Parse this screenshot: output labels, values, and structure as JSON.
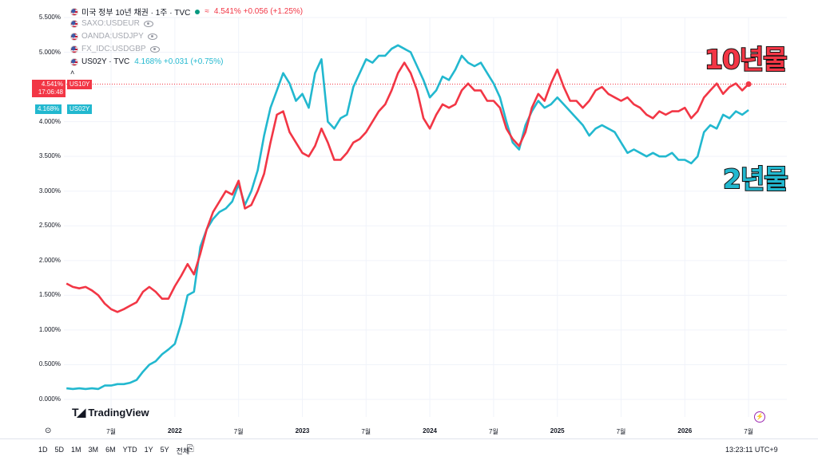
{
  "legend": {
    "main_title": "미국 정부 10년 채권 · 1주 · TVC",
    "main_values": "4.541% +0.056 (+1.25%)",
    "overlays": [
      "SAXO:USDEUR",
      "OANDA:USDJPY",
      "FX_IDC:USDGBP"
    ],
    "second_title": "US02Y · TVC",
    "second_values": "4.168% +0.031 (+0.75%)",
    "collapse_icon": "chevron-up-icon"
  },
  "price_tags": {
    "us10y_value": "4.541%",
    "us10y_symbol": "US10Y",
    "us10y_time": "17:06:48",
    "us02y_value": "4.168%",
    "us02y_symbol": "US02Y"
  },
  "annotations": {
    "label_10y": "10년물",
    "label_2y": "2년물"
  },
  "brand": {
    "name": "TradingView"
  },
  "bottom_bar": {
    "ranges": [
      "1D",
      "5D",
      "1M",
      "3M",
      "6M",
      "YTD",
      "1Y",
      "5Y",
      "전체"
    ],
    "clock": "13:23:11 UTC+9"
  },
  "colors": {
    "us10y": "#f23645",
    "us02y": "#22b8cf",
    "grid": "#f0f3fa",
    "current_line": "#f23645"
  },
  "chart_data": {
    "type": "line",
    "ylim": [
      0,
      5.5
    ],
    "yticks": [
      "0.000%",
      "0.500%",
      "1.000%",
      "1.500%",
      "2.000%",
      "2.500%",
      "3.000%",
      "3.500%",
      "4.000%",
      "4.500%",
      "5.000%",
      "5.500%"
    ],
    "xticks": [
      {
        "label": "7월",
        "x": 2021.5
      },
      {
        "label": "2022",
        "x": 2022.0
      },
      {
        "label": "7월",
        "x": 2022.5
      },
      {
        "label": "2023",
        "x": 2023.0
      },
      {
        "label": "7월",
        "x": 2023.5
      },
      {
        "label": "2024",
        "x": 2024.0
      },
      {
        "label": "7월",
        "x": 2024.5
      },
      {
        "label": "2025",
        "x": 2025.0
      },
      {
        "label": "7월",
        "x": 2025.5
      },
      {
        "label": "2026",
        "x": 2026.0
      },
      {
        "label": "7월",
        "x": 2026.5
      }
    ],
    "xlim": [
      2021.13,
      2026.8
    ],
    "series": [
      {
        "name": "US10Y",
        "color": "#f23645",
        "points": [
          [
            2021.15,
            1.67
          ],
          [
            2021.2,
            1.62
          ],
          [
            2021.25,
            1.6
          ],
          [
            2021.3,
            1.62
          ],
          [
            2021.35,
            1.57
          ],
          [
            2021.4,
            1.5
          ],
          [
            2021.45,
            1.38
          ],
          [
            2021.5,
            1.3
          ],
          [
            2021.55,
            1.26
          ],
          [
            2021.6,
            1.3
          ],
          [
            2021.65,
            1.35
          ],
          [
            2021.7,
            1.4
          ],
          [
            2021.75,
            1.55
          ],
          [
            2021.8,
            1.62
          ],
          [
            2021.85,
            1.55
          ],
          [
            2021.9,
            1.45
          ],
          [
            2021.95,
            1.45
          ],
          [
            2022.0,
            1.63
          ],
          [
            2022.05,
            1.78
          ],
          [
            2022.1,
            1.95
          ],
          [
            2022.15,
            1.8
          ],
          [
            2022.2,
            2.1
          ],
          [
            2022.25,
            2.45
          ],
          [
            2022.3,
            2.7
          ],
          [
            2022.35,
            2.85
          ],
          [
            2022.4,
            3.0
          ],
          [
            2022.45,
            2.95
          ],
          [
            2022.5,
            3.15
          ],
          [
            2022.55,
            2.75
          ],
          [
            2022.6,
            2.8
          ],
          [
            2022.65,
            3.0
          ],
          [
            2022.7,
            3.25
          ],
          [
            2022.75,
            3.7
          ],
          [
            2022.8,
            4.1
          ],
          [
            2022.85,
            4.15
          ],
          [
            2022.9,
            3.85
          ],
          [
            2022.95,
            3.7
          ],
          [
            2023.0,
            3.55
          ],
          [
            2023.05,
            3.5
          ],
          [
            2023.1,
            3.65
          ],
          [
            2023.15,
            3.9
          ],
          [
            2023.2,
            3.7
          ],
          [
            2023.25,
            3.45
          ],
          [
            2023.3,
            3.45
          ],
          [
            2023.35,
            3.55
          ],
          [
            2023.4,
            3.7
          ],
          [
            2023.45,
            3.75
          ],
          [
            2023.5,
            3.85
          ],
          [
            2023.55,
            4.0
          ],
          [
            2023.6,
            4.15
          ],
          [
            2023.65,
            4.25
          ],
          [
            2023.7,
            4.45
          ],
          [
            2023.75,
            4.7
          ],
          [
            2023.8,
            4.85
          ],
          [
            2023.85,
            4.7
          ],
          [
            2023.9,
            4.45
          ],
          [
            2023.95,
            4.05
          ],
          [
            2024.0,
            3.9
          ],
          [
            2024.05,
            4.1
          ],
          [
            2024.1,
            4.25
          ],
          [
            2024.15,
            4.2
          ],
          [
            2024.2,
            4.25
          ],
          [
            2024.25,
            4.45
          ],
          [
            2024.3,
            4.55
          ],
          [
            2024.35,
            4.45
          ],
          [
            2024.4,
            4.45
          ],
          [
            2024.45,
            4.3
          ],
          [
            2024.5,
            4.3
          ],
          [
            2024.55,
            4.2
          ],
          [
            2024.6,
            3.9
          ],
          [
            2024.65,
            3.75
          ],
          [
            2024.7,
            3.65
          ],
          [
            2024.75,
            3.85
          ],
          [
            2024.8,
            4.2
          ],
          [
            2024.85,
            4.4
          ],
          [
            2024.9,
            4.3
          ],
          [
            2024.95,
            4.55
          ],
          [
            2025.0,
            4.75
          ],
          [
            2025.05,
            4.5
          ],
          [
            2025.1,
            4.3
          ],
          [
            2025.15,
            4.3
          ],
          [
            2025.2,
            4.2
          ],
          [
            2025.25,
            4.3
          ],
          [
            2025.3,
            4.45
          ],
          [
            2025.35,
            4.5
          ],
          [
            2025.4,
            4.4
          ],
          [
            2025.45,
            4.35
          ],
          [
            2025.5,
            4.3
          ],
          [
            2025.55,
            4.35
          ],
          [
            2025.6,
            4.25
          ],
          [
            2025.65,
            4.2
          ],
          [
            2025.7,
            4.1
          ],
          [
            2025.75,
            4.05
          ],
          [
            2025.8,
            4.15
          ],
          [
            2025.85,
            4.1
          ],
          [
            2025.9,
            4.15
          ],
          [
            2025.95,
            4.15
          ],
          [
            2026.0,
            4.2
          ],
          [
            2026.05,
            4.05
          ],
          [
            2026.1,
            4.15
          ],
          [
            2026.15,
            4.35
          ],
          [
            2026.2,
            4.45
          ],
          [
            2026.25,
            4.55
          ],
          [
            2026.3,
            4.4
          ],
          [
            2026.35,
            4.5
          ],
          [
            2026.4,
            4.55
          ],
          [
            2026.45,
            4.45
          ],
          [
            2026.5,
            4.541
          ]
        ]
      },
      {
        "name": "US02Y",
        "color": "#22b8cf",
        "points": [
          [
            2021.15,
            0.16
          ],
          [
            2021.2,
            0.15
          ],
          [
            2021.25,
            0.16
          ],
          [
            2021.3,
            0.15
          ],
          [
            2021.35,
            0.16
          ],
          [
            2021.4,
            0.15
          ],
          [
            2021.45,
            0.2
          ],
          [
            2021.5,
            0.2
          ],
          [
            2021.55,
            0.22
          ],
          [
            2021.6,
            0.22
          ],
          [
            2021.65,
            0.24
          ],
          [
            2021.7,
            0.28
          ],
          [
            2021.75,
            0.4
          ],
          [
            2021.8,
            0.5
          ],
          [
            2021.85,
            0.55
          ],
          [
            2021.9,
            0.65
          ],
          [
            2021.95,
            0.72
          ],
          [
            2022.0,
            0.8
          ],
          [
            2022.05,
            1.1
          ],
          [
            2022.1,
            1.5
          ],
          [
            2022.15,
            1.55
          ],
          [
            2022.2,
            2.2
          ],
          [
            2022.25,
            2.45
          ],
          [
            2022.3,
            2.6
          ],
          [
            2022.35,
            2.7
          ],
          [
            2022.4,
            2.75
          ],
          [
            2022.45,
            2.85
          ],
          [
            2022.5,
            3.1
          ],
          [
            2022.55,
            2.8
          ],
          [
            2022.6,
            3.0
          ],
          [
            2022.65,
            3.3
          ],
          [
            2022.7,
            3.8
          ],
          [
            2022.75,
            4.2
          ],
          [
            2022.8,
            4.45
          ],
          [
            2022.85,
            4.7
          ],
          [
            2022.9,
            4.55
          ],
          [
            2022.95,
            4.3
          ],
          [
            2023.0,
            4.4
          ],
          [
            2023.05,
            4.2
          ],
          [
            2023.1,
            4.7
          ],
          [
            2023.15,
            4.9
          ],
          [
            2023.2,
            4.0
          ],
          [
            2023.25,
            3.9
          ],
          [
            2023.3,
            4.05
          ],
          [
            2023.35,
            4.1
          ],
          [
            2023.4,
            4.5
          ],
          [
            2023.45,
            4.7
          ],
          [
            2023.5,
            4.9
          ],
          [
            2023.55,
            4.85
          ],
          [
            2023.6,
            4.95
          ],
          [
            2023.65,
            4.95
          ],
          [
            2023.7,
            5.05
          ],
          [
            2023.75,
            5.1
          ],
          [
            2023.8,
            5.05
          ],
          [
            2023.85,
            5.0
          ],
          [
            2023.9,
            4.8
          ],
          [
            2023.95,
            4.6
          ],
          [
            2024.0,
            4.35
          ],
          [
            2024.05,
            4.45
          ],
          [
            2024.1,
            4.65
          ],
          [
            2024.15,
            4.6
          ],
          [
            2024.2,
            4.75
          ],
          [
            2024.25,
            4.95
          ],
          [
            2024.3,
            4.85
          ],
          [
            2024.35,
            4.8
          ],
          [
            2024.4,
            4.85
          ],
          [
            2024.45,
            4.7
          ],
          [
            2024.5,
            4.55
          ],
          [
            2024.55,
            4.35
          ],
          [
            2024.6,
            4.0
          ],
          [
            2024.65,
            3.7
          ],
          [
            2024.7,
            3.6
          ],
          [
            2024.75,
            3.95
          ],
          [
            2024.8,
            4.15
          ],
          [
            2024.85,
            4.3
          ],
          [
            2024.9,
            4.2
          ],
          [
            2024.95,
            4.25
          ],
          [
            2025.0,
            4.35
          ],
          [
            2025.05,
            4.25
          ],
          [
            2025.1,
            4.15
          ],
          [
            2025.15,
            4.05
          ],
          [
            2025.2,
            3.95
          ],
          [
            2025.25,
            3.8
          ],
          [
            2025.3,
            3.9
          ],
          [
            2025.35,
            3.95
          ],
          [
            2025.4,
            3.9
          ],
          [
            2025.45,
            3.85
          ],
          [
            2025.5,
            3.7
          ],
          [
            2025.55,
            3.55
          ],
          [
            2025.6,
            3.6
          ],
          [
            2025.65,
            3.55
          ],
          [
            2025.7,
            3.5
          ],
          [
            2025.75,
            3.55
          ],
          [
            2025.8,
            3.5
          ],
          [
            2025.85,
            3.5
          ],
          [
            2025.9,
            3.55
          ],
          [
            2025.95,
            3.45
          ],
          [
            2026.0,
            3.45
          ],
          [
            2026.05,
            3.4
          ],
          [
            2026.1,
            3.5
          ],
          [
            2026.15,
            3.85
          ],
          [
            2026.2,
            3.95
          ],
          [
            2026.25,
            3.9
          ],
          [
            2026.3,
            4.1
          ],
          [
            2026.35,
            4.05
          ],
          [
            2026.4,
            4.15
          ],
          [
            2026.45,
            4.1
          ],
          [
            2026.5,
            4.168
          ]
        ]
      }
    ]
  }
}
